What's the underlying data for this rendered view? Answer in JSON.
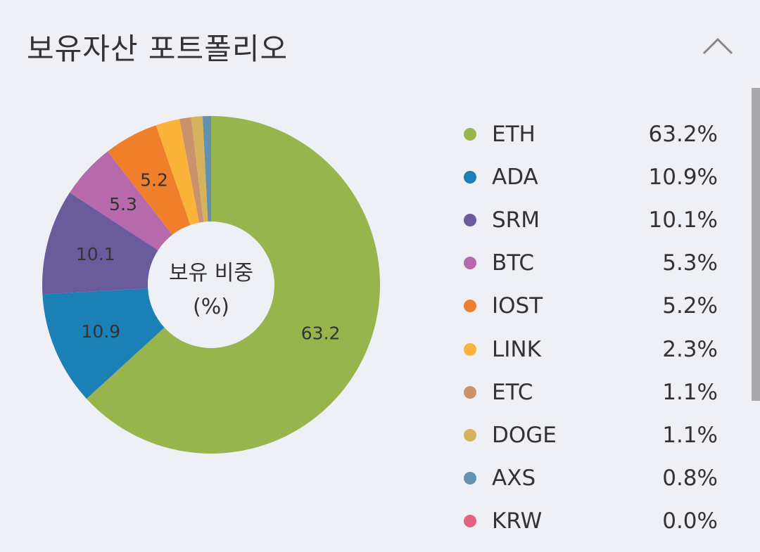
{
  "header": {
    "title": "보유자산 포트폴리오",
    "collapse_icon": "chevron-up-icon"
  },
  "chart_data": {
    "type": "pie",
    "donut": true,
    "center_label_line1": "보유 비중",
    "center_label_line2": "(%)",
    "start": "top",
    "direction": "clockwise",
    "min_label_value": 5,
    "slices": [
      {
        "name": "ETH",
        "value": 63.2,
        "label": "63.2%",
        "color": "#97b54c"
      },
      {
        "name": "ADA",
        "value": 10.9,
        "label": "10.9%",
        "color": "#1a80b5"
      },
      {
        "name": "SRM",
        "value": 10.1,
        "label": "10.1%",
        "color": "#6a5b9c"
      },
      {
        "name": "BTC",
        "value": 5.3,
        "label": "5.3%",
        "color": "#b76aab"
      },
      {
        "name": "IOST",
        "value": 5.2,
        "label": "5.2%",
        "color": "#f07f2c"
      },
      {
        "name": "LINK",
        "value": 2.3,
        "label": "2.3%",
        "color": "#fbb33a"
      },
      {
        "name": "ETC",
        "value": 1.1,
        "label": "1.1%",
        "color": "#c9926c"
      },
      {
        "name": "DOGE",
        "value": 1.1,
        "label": "1.1%",
        "color": "#d4b35c"
      },
      {
        "name": "AXS",
        "value": 0.8,
        "label": "0.8%",
        "color": "#6591b0"
      },
      {
        "name": "KRW",
        "value": 0.0,
        "label": "0.0%",
        "color": "#de6680"
      }
    ]
  }
}
